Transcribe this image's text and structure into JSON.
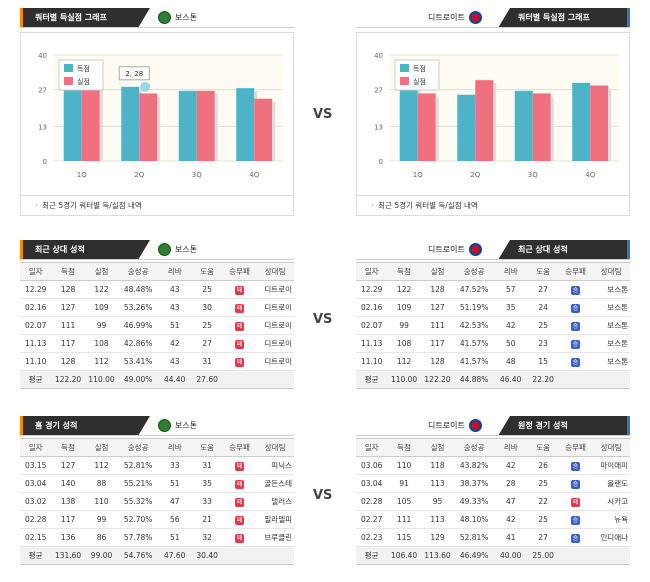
{
  "sections": {
    "quarter_graph": {
      "left_title": "쿼터별 득실점 그래프",
      "right_title": "쿼터별 득실점 그래프",
      "left_team": "보스톤",
      "right_team": "디트로이트",
      "footer": "최근 5경기 쿼터별 득/실점 내역",
      "vs": "VS"
    },
    "recent": {
      "left_title": "최근 상대 성적",
      "right_title": "최근 상대 성적",
      "left_team": "보스톤",
      "right_team": "디트로이트",
      "vs": "VS"
    },
    "home_away": {
      "left_title": "홈 경기 성적",
      "right_title": "원정 경기 성적",
      "left_team": "보스톤",
      "right_team": "디트로이트",
      "vs": "VS"
    }
  },
  "legend": {
    "score": "득점",
    "concede": "실점"
  },
  "tooltip": "2, 28",
  "colors": {
    "score": "#4fb3c8",
    "concede": "#f0707f",
    "win": "#3b5fc9",
    "lose": "#e03a4e"
  },
  "chart_data": [
    {
      "type": "bar",
      "categories": [
        "1Q",
        "2Q",
        "3Q",
        "4Q"
      ],
      "ylim": [
        0,
        40
      ],
      "yticks": [
        "40",
        "27",
        "13",
        "0"
      ],
      "series": [
        {
          "name": "득점",
          "values": [
            27,
            28,
            26.5,
            27.5
          ]
        },
        {
          "name": "실점",
          "values": [
            28.5,
            25.5,
            26.5,
            23.5
          ]
        }
      ]
    },
    {
      "type": "bar",
      "categories": [
        "1Q",
        "2Q",
        "3Q",
        "4Q"
      ],
      "ylim": [
        0,
        40
      ],
      "yticks": [
        "40",
        "27",
        "13",
        "0"
      ],
      "series": [
        {
          "name": "득점",
          "values": [
            28.5,
            25,
            26.5,
            29.5
          ]
        },
        {
          "name": "실점",
          "values": [
            25.5,
            30.5,
            25.5,
            28.5
          ]
        }
      ]
    }
  ],
  "table_headers": [
    "일자",
    "득점",
    "실점",
    "승성공",
    "리바",
    "도움",
    "승무패",
    "상대팀"
  ],
  "recent_left": {
    "rows": [
      [
        "12.29",
        "128",
        "122",
        "48.48%",
        "43",
        "25",
        "L",
        "디트로이"
      ],
      [
        "02.16",
        "127",
        "109",
        "53.26%",
        "43",
        "30",
        "L",
        "디트로이"
      ],
      [
        "02.07",
        "111",
        "99",
        "46.99%",
        "51",
        "25",
        "L",
        "디트로이"
      ],
      [
        "11.13",
        "117",
        "108",
        "42.86%",
        "42",
        "27",
        "L",
        "디트로이"
      ],
      [
        "11.10",
        "128",
        "112",
        "53.41%",
        "43",
        "31",
        "L",
        "디트로이"
      ]
    ],
    "avg": [
      "평균",
      "122.20",
      "110.00",
      "49.00%",
      "44.40",
      "27.60",
      "",
      ""
    ]
  },
  "recent_right": {
    "rows": [
      [
        "12.29",
        "122",
        "128",
        "47.52%",
        "57",
        "27",
        "W",
        "보스톤"
      ],
      [
        "02.16",
        "109",
        "127",
        "51.19%",
        "35",
        "24",
        "W",
        "보스톤"
      ],
      [
        "02.07",
        "99",
        "111",
        "42.53%",
        "42",
        "25",
        "W",
        "보스톤"
      ],
      [
        "11.13",
        "108",
        "117",
        "41.57%",
        "50",
        "23",
        "W",
        "보스톤"
      ],
      [
        "11.10",
        "112",
        "128",
        "41.57%",
        "48",
        "15",
        "W",
        "보스톤"
      ]
    ],
    "avg": [
      "평균",
      "110.00",
      "122.20",
      "44.88%",
      "46.40",
      "22.20",
      "",
      ""
    ]
  },
  "home_left": {
    "rows": [
      [
        "03.15",
        "127",
        "112",
        "52.81%",
        "33",
        "31",
        "L",
        "피닉스"
      ],
      [
        "03.04",
        "140",
        "88",
        "55.21%",
        "51",
        "35",
        "L",
        "골든스테"
      ],
      [
        "03.02",
        "138",
        "110",
        "55.32%",
        "47",
        "33",
        "L",
        "댈러스"
      ],
      [
        "02.28",
        "117",
        "99",
        "52.70%",
        "56",
        "21",
        "L",
        "필라델피"
      ],
      [
        "02.15",
        "136",
        "86",
        "57.78%",
        "51",
        "32",
        "L",
        "브루클린"
      ]
    ],
    "avg": [
      "평균",
      "131.60",
      "99.00",
      "54.76%",
      "47.60",
      "30.40",
      "",
      ""
    ]
  },
  "away_right": {
    "rows": [
      [
        "03.06",
        "110",
        "118",
        "43.82%",
        "42",
        "26",
        "W",
        "마이애미"
      ],
      [
        "03.04",
        "91",
        "113",
        "38.37%",
        "28",
        "25",
        "W",
        "올랜도"
      ],
      [
        "02.28",
        "105",
        "95",
        "49.33%",
        "47",
        "22",
        "L",
        "시카고"
      ],
      [
        "02.27",
        "111",
        "113",
        "48.10%",
        "42",
        "25",
        "W",
        "뉴욕"
      ],
      [
        "02.23",
        "115",
        "129",
        "52.81%",
        "41",
        "27",
        "W",
        "인디애나"
      ]
    ],
    "avg": [
      "평균",
      "106.40",
      "113.60",
      "46.49%",
      "40.00",
      "25.00",
      "",
      ""
    ]
  }
}
